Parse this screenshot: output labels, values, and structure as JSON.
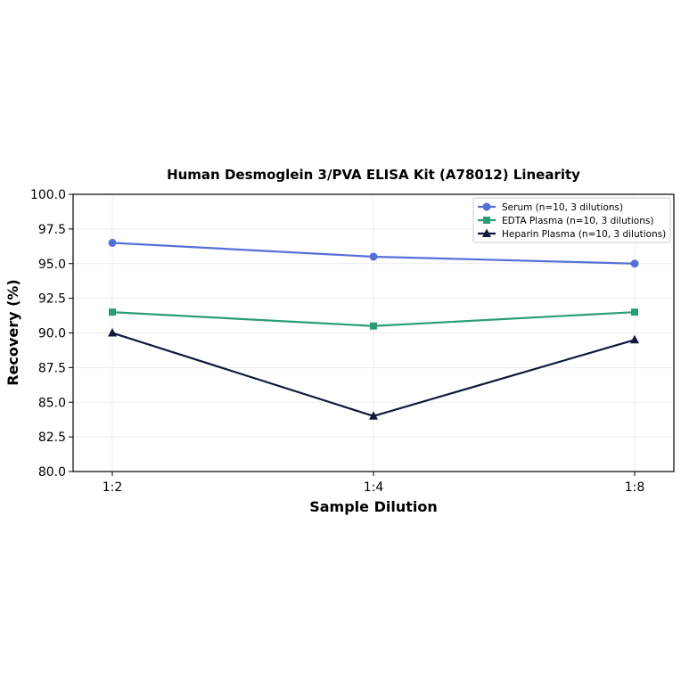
{
  "chart_data": {
    "type": "line",
    "title": "Human Desmoglein 3/PVA ELISA Kit (A78012) Linearity",
    "xlabel": "Sample Dilution",
    "ylabel": "Recovery (%)",
    "categories": [
      "1:2",
      "1:4",
      "1:8"
    ],
    "ylim": [
      80.0,
      100.0
    ],
    "yticks": [
      "80.0",
      "82.5",
      "85.0",
      "87.5",
      "90.0",
      "92.5",
      "95.0",
      "97.5",
      "100.0"
    ],
    "grid": true,
    "legend_position": "top-right",
    "series": [
      {
        "name": "Serum (n=10, 3 dilutions)",
        "values": [
          96.5,
          95.5,
          95.0
        ],
        "color": "#5470d8",
        "marker": "circle"
      },
      {
        "name": "EDTA Plasma (n=10, 3 dilutions)",
        "values": [
          91.5,
          90.5,
          91.5
        ],
        "color": "#2a9d74",
        "marker": "square"
      },
      {
        "name": "Heparin Plasma (n=10, 3 dilutions)",
        "values": [
          90.0,
          84.0,
          89.5
        ],
        "color": "#111a3e",
        "marker": "triangle"
      }
    ]
  }
}
